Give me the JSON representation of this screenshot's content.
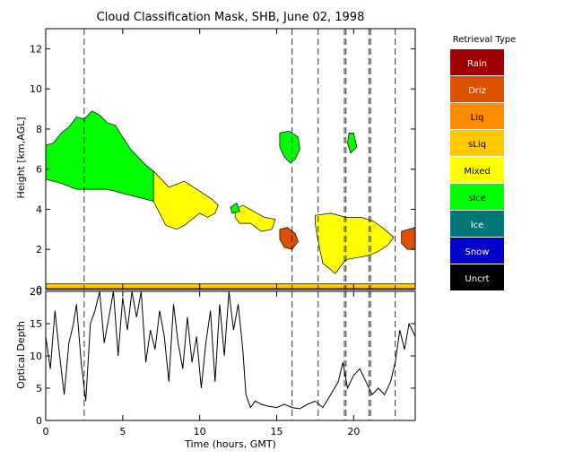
{
  "chart_data": [
    {
      "type": "heatmap",
      "title": "Cloud Classification Mask, SHB, June 02, 1998",
      "ylabel": "Height [km,AGL]",
      "xlim": [
        0,
        24
      ],
      "ylim": [
        0,
        13
      ],
      "y_ticks": [
        0,
        2,
        4,
        6,
        8,
        10,
        12
      ],
      "legend": {
        "title": "Retrieval Type",
        "placement": "right",
        "items": [
          {
            "label": "Rain",
            "color": "#a00000"
          },
          {
            "label": "Driz",
            "color": "#dc5000"
          },
          {
            "label": "Liq",
            "color": "#ff8c00"
          },
          {
            "label": "sLiq",
            "color": "#ffc800"
          },
          {
            "label": "Mixed",
            "color": "#ffff00"
          },
          {
            "label": "sIce",
            "color": "#00ff00"
          },
          {
            "label": "Ice",
            "color": "#007878"
          },
          {
            "label": "Snow",
            "color": "#0000c8"
          },
          {
            "label": "Uncrt",
            "color": "#000000"
          }
        ]
      },
      "vertical_marker_times": [
        2.5,
        16.0,
        17.7,
        19.4,
        19.5,
        21.0,
        21.1,
        22.7
      ],
      "regions": [
        {
          "type": "sIce",
          "points": [
            [
              0,
              7.2
            ],
            [
              0.5,
              7.3
            ],
            [
              1.0,
              7.8
            ],
            [
              1.5,
              8.1
            ],
            [
              2.0,
              8.6
            ],
            [
              2.5,
              8.5
            ],
            [
              3.0,
              8.9
            ],
            [
              3.5,
              8.7
            ],
            [
              4.0,
              8.3
            ],
            [
              4.5,
              8.2
            ],
            [
              5.0,
              7.6
            ],
            [
              5.5,
              7.0
            ],
            [
              6.0,
              6.6
            ],
            [
              6.5,
              6.2
            ],
            [
              7.0,
              5.9
            ],
            [
              7.0,
              4.4
            ],
            [
              6.0,
              4.6
            ],
            [
              5.0,
              4.8
            ],
            [
              4.0,
              5.0
            ],
            [
              3.0,
              5.0
            ],
            [
              2.0,
              5.0
            ],
            [
              1.0,
              5.3
            ],
            [
              0,
              5.5
            ]
          ]
        },
        {
          "type": "Mixed",
          "points": [
            [
              7.0,
              5.9
            ],
            [
              7.5,
              5.5
            ],
            [
              8.0,
              5.1
            ],
            [
              9.0,
              5.4
            ],
            [
              10.0,
              4.9
            ],
            [
              10.8,
              4.5
            ],
            [
              11.2,
              4.2
            ],
            [
              11.0,
              3.8
            ],
            [
              10.5,
              3.6
            ],
            [
              10.0,
              3.8
            ],
            [
              9.0,
              3.2
            ],
            [
              8.5,
              3.0
            ],
            [
              7.8,
              3.2
            ],
            [
              7.0,
              4.4
            ]
          ]
        },
        {
          "type": "Mixed",
          "points": [
            [
              12.3,
              4.0
            ],
            [
              12.8,
              4.2
            ],
            [
              13.5,
              3.9
            ],
            [
              14.2,
              3.6
            ],
            [
              14.9,
              3.5
            ],
            [
              14.7,
              3.0
            ],
            [
              14.0,
              2.9
            ],
            [
              13.3,
              3.3
            ],
            [
              12.6,
              3.3
            ],
            [
              12.3,
              3.6
            ]
          ]
        },
        {
          "type": "Mixed",
          "points": [
            [
              17.5,
              3.7
            ],
            [
              18.5,
              3.8
            ],
            [
              19.5,
              3.6
            ],
            [
              20.5,
              3.6
            ],
            [
              21.3,
              3.4
            ],
            [
              22.0,
              3.0
            ],
            [
              22.6,
              2.6
            ],
            [
              22.2,
              2.2
            ],
            [
              21.6,
              1.9
            ],
            [
              21.0,
              1.7
            ],
            [
              20.3,
              1.6
            ],
            [
              19.5,
              1.5
            ],
            [
              18.8,
              0.8
            ],
            [
              18.5,
              1.0
            ],
            [
              18.0,
              1.3
            ],
            [
              17.8,
              2.0
            ],
            [
              17.6,
              2.8
            ],
            [
              17.5,
              3.3
            ]
          ]
        },
        {
          "type": "Driz",
          "points": [
            [
              15.2,
              3.0
            ],
            [
              15.7,
              3.1
            ],
            [
              16.2,
              2.8
            ],
            [
              16.4,
              2.4
            ],
            [
              16.0,
              2.0
            ],
            [
              15.5,
              2.1
            ],
            [
              15.2,
              2.5
            ]
          ]
        },
        {
          "type": "Driz",
          "points": [
            [
              23.1,
              2.9
            ],
            [
              24.0,
              3.1
            ],
            [
              24.0,
              2.0
            ],
            [
              23.5,
              2.0
            ],
            [
              23.1,
              2.3
            ]
          ]
        },
        {
          "type": "sIce",
          "points": [
            [
              15.2,
              7.8
            ],
            [
              15.8,
              7.9
            ],
            [
              16.4,
              7.6
            ],
            [
              16.5,
              7.0
            ],
            [
              16.2,
              6.5
            ],
            [
              15.9,
              6.3
            ],
            [
              15.5,
              6.6
            ],
            [
              15.2,
              7.1
            ]
          ]
        },
        {
          "type": "sIce",
          "points": [
            [
              19.7,
              7.8
            ],
            [
              20.0,
              7.8
            ],
            [
              20.2,
              7.1
            ],
            [
              19.8,
              6.8
            ],
            [
              19.6,
              7.3
            ]
          ]
        },
        {
          "type": "sIce",
          "points": [
            [
              12.0,
              4.1
            ],
            [
              12.4,
              4.3
            ],
            [
              12.6,
              3.9
            ],
            [
              12.1,
              3.8
            ]
          ]
        },
        {
          "type": "sLiq",
          "points": [
            [
              0,
              0.3
            ],
            [
              24.0,
              0.3
            ],
            [
              24.0,
              0.05
            ],
            [
              0,
              0.05
            ]
          ]
        }
      ]
    },
    {
      "type": "line",
      "xlabel": "Time (hours, GMT)",
      "ylabel": "Optical Depth",
      "xlim": [
        0,
        24
      ],
      "ylim": [
        0,
        20
      ],
      "x_ticks": [
        0,
        5,
        10,
        15,
        20
      ],
      "y_ticks": [
        0,
        5,
        10,
        15,
        20
      ],
      "series": [
        {
          "x": [
            0,
            0.3,
            0.6,
            0.9,
            1.2,
            1.5,
            1.8,
            2.0,
            2.3,
            2.6,
            2.9,
            3.2,
            3.5,
            3.8,
            4.1,
            4.4,
            4.7,
            5.0,
            5.3,
            5.6,
            5.9,
            6.2,
            6.5,
            6.8,
            7.1,
            7.4,
            7.7,
            8.0,
            8.3,
            8.6,
            8.9,
            9.2,
            9.5,
            9.8,
            10.1,
            10.4,
            10.7,
            11.0,
            11.3,
            11.6,
            11.9,
            12.2,
            12.5,
            12.8,
            13.0,
            13.3,
            13.6,
            14.0,
            14.5,
            15.0,
            15.5,
            16.0,
            16.5,
            17.0,
            17.5,
            18.0,
            18.5,
            19.0,
            19.3,
            19.6,
            20.0,
            20.4,
            20.8,
            21.2,
            21.6,
            22.0,
            22.4,
            22.7,
            23.0,
            23.3,
            23.6,
            24.0
          ],
          "y": [
            13,
            8,
            17,
            10,
            4,
            12,
            15,
            18,
            9,
            3,
            15,
            17,
            20,
            12,
            16,
            20,
            10,
            19,
            14,
            20,
            16,
            20,
            9,
            14,
            11,
            17,
            13,
            6,
            18,
            12,
            8,
            16,
            9,
            13,
            5,
            12,
            17,
            6,
            18,
            10,
            20,
            14,
            18,
            11,
            4,
            2,
            3,
            2.5,
            2.2,
            2,
            2.5,
            2,
            1.8,
            2.5,
            3,
            2,
            4,
            6,
            9,
            5,
            7,
            8,
            6,
            4,
            5,
            4,
            6,
            9,
            14,
            11,
            15,
            13
          ]
        }
      ]
    }
  ]
}
